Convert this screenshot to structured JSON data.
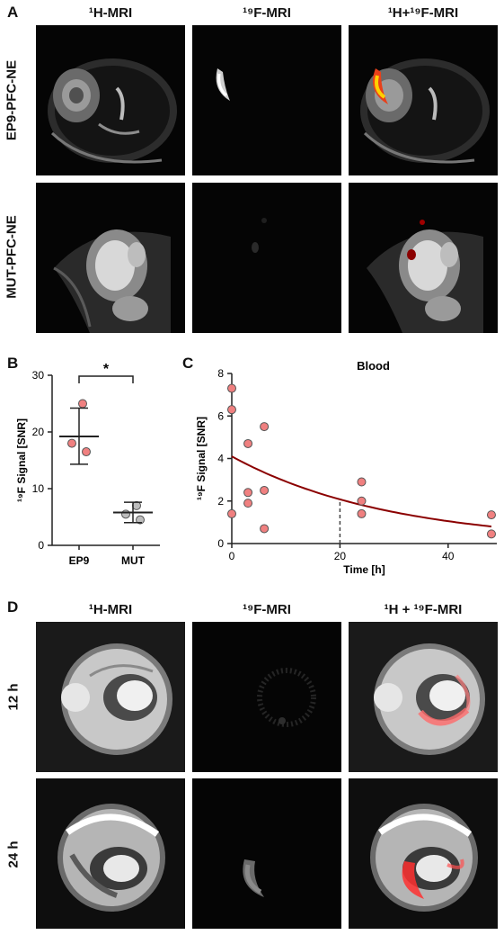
{
  "panel_a": {
    "letter": "A",
    "columns": [
      "¹H-MRI",
      "¹⁹F-MRI",
      "¹H+¹⁹F-MRI"
    ],
    "rows": [
      "EP9-PFC-NE",
      "MUT-PFC-NE"
    ]
  },
  "panel_b": {
    "letter": "B",
    "significance": "*"
  },
  "panel_c": {
    "letter": "C"
  },
  "panel_d": {
    "letter": "D",
    "columns": [
      "¹H-MRI",
      "¹⁹F-MRI",
      "¹H + ¹⁹F-MRI"
    ],
    "rows": [
      "12 h",
      "24 h"
    ]
  },
  "chart_data": [
    {
      "type": "scatter",
      "title": "",
      "xlabel": "",
      "ylabel": "¹⁹F Signal [SNR]",
      "categories": [
        "EP9",
        "MUT"
      ],
      "ylim": [
        0,
        30
      ],
      "yticks": [
        0,
        10,
        20,
        30
      ],
      "series": [
        {
          "category": "EP9",
          "points": [
            25.0,
            18.0,
            16.5
          ],
          "mean": 19.2,
          "sd_upper": 24.2,
          "sd_lower": 14.3,
          "color": "#f08080"
        },
        {
          "category": "MUT",
          "points": [
            7.0,
            5.5,
            4.5
          ],
          "mean": 5.8,
          "sd_upper": 7.6,
          "sd_lower": 4.0,
          "color": "#bdbdbd"
        }
      ],
      "grid": false
    },
    {
      "type": "scatter",
      "title": "Blood",
      "xlabel": "Time [h]",
      "ylabel": "¹⁹F Signal [SNR]",
      "xlim": [
        0,
        49
      ],
      "ylim": [
        0,
        8
      ],
      "xticks": [
        0,
        20,
        40
      ],
      "yticks": [
        0,
        2,
        4,
        6,
        8
      ],
      "points": [
        {
          "x": 0,
          "y": 7.3
        },
        {
          "x": 0,
          "y": 6.3
        },
        {
          "x": 0,
          "y": 1.4
        },
        {
          "x": 3,
          "y": 4.7
        },
        {
          "x": 3,
          "y": 2.4
        },
        {
          "x": 3,
          "y": 1.9
        },
        {
          "x": 6,
          "y": 5.5
        },
        {
          "x": 6,
          "y": 2.5
        },
        {
          "x": 6,
          "y": 0.7
        },
        {
          "x": 24,
          "y": 2.9
        },
        {
          "x": 24,
          "y": 2.0
        },
        {
          "x": 24,
          "y": 1.4
        },
        {
          "x": 48,
          "y": 1.35
        },
        {
          "x": 48,
          "y": 0.45
        }
      ],
      "fit": {
        "type": "exponential",
        "y0": 4.1,
        "k": 0.034
      },
      "marker_line_x": 20,
      "point_color": "#f08080",
      "fit_color": "#8b0000",
      "grid": false
    }
  ]
}
